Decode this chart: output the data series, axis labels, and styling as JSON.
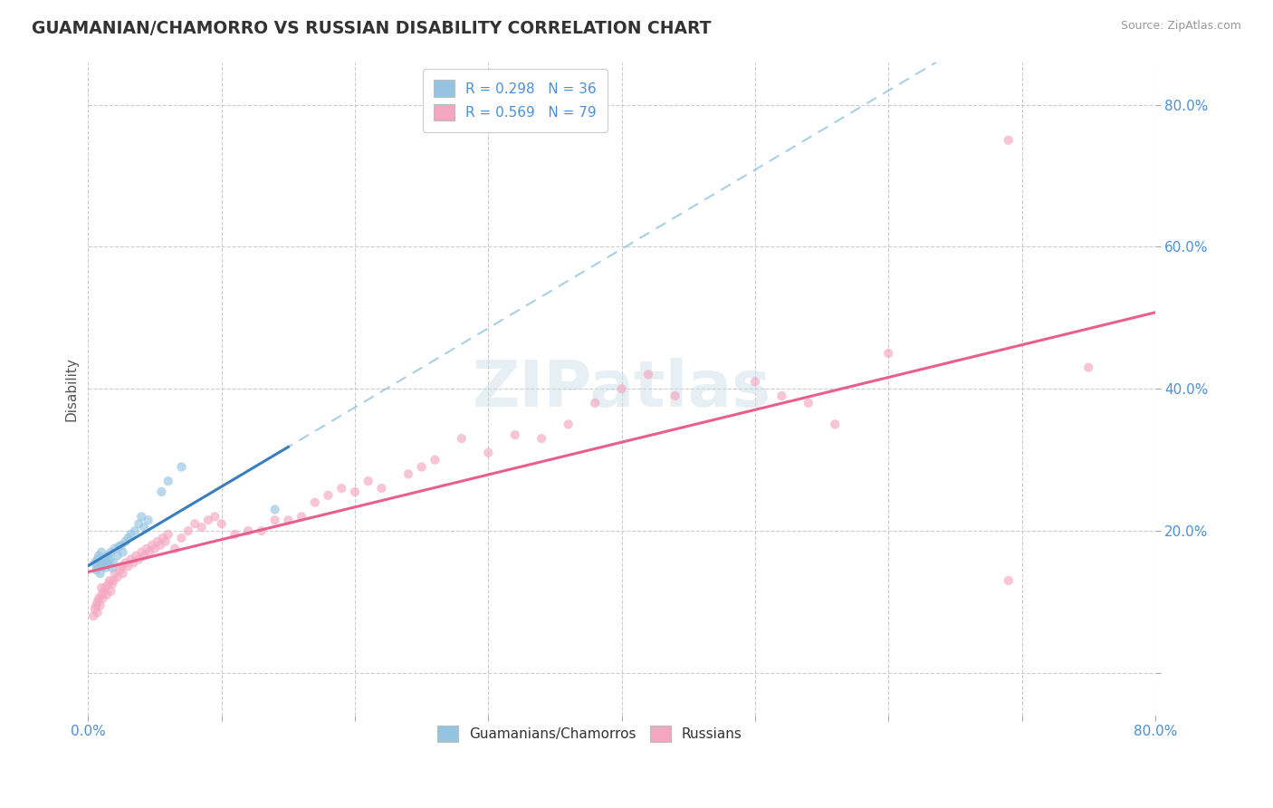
{
  "title": "GUAMANIAN/CHAMORRO VS RUSSIAN DISABILITY CORRELATION CHART",
  "source": "Source: ZipAtlas.com",
  "ylabel": "Disability",
  "xlim": [
    0.0,
    0.8
  ],
  "ylim": [
    -0.06,
    0.86
  ],
  "xticks": [
    0.0,
    0.1,
    0.2,
    0.3,
    0.4,
    0.5,
    0.6,
    0.7,
    0.8
  ],
  "xticklabels": [
    "0.0%",
    "",
    "",
    "",
    "",
    "",
    "",
    "",
    "80.0%"
  ],
  "ytick_positions": [
    0.0,
    0.2,
    0.4,
    0.6,
    0.8
  ],
  "ytick_labels": [
    "",
    "20.0%",
    "40.0%",
    "60.0%",
    "80.0%"
  ],
  "grid_color": "#cccccc",
  "background_color": "#ffffff",
  "watermark": "ZIPatlas",
  "legend1_R": "0.298",
  "legend1_N": "36",
  "legend2_R": "0.569",
  "legend2_N": "79",
  "blue_color": "#94c4e0",
  "pink_color": "#f4a7c0",
  "blue_line_color": "#3a7ec0",
  "pink_line_color": "#e8608a",
  "blue_dash_color": "#94c4e0",
  "scatter_alpha": 0.65,
  "scatter_size": 55,
  "guamanian_x": [
    0.005,
    0.006,
    0.007,
    0.007,
    0.008,
    0.009,
    0.01,
    0.01,
    0.011,
    0.012,
    0.013,
    0.013,
    0.014,
    0.015,
    0.015,
    0.016,
    0.017,
    0.018,
    0.019,
    0.02,
    0.022,
    0.023,
    0.025,
    0.026,
    0.028,
    0.03,
    0.032,
    0.035,
    0.038,
    0.04,
    0.042,
    0.045,
    0.055,
    0.06,
    0.07,
    0.14
  ],
  "guamanian_y": [
    0.155,
    0.145,
    0.16,
    0.15,
    0.165,
    0.14,
    0.155,
    0.17,
    0.15,
    0.158,
    0.162,
    0.148,
    0.155,
    0.165,
    0.152,
    0.16,
    0.17,
    0.148,
    0.155,
    0.175,
    0.165,
    0.178,
    0.18,
    0.17,
    0.185,
    0.19,
    0.195,
    0.2,
    0.21,
    0.22,
    0.205,
    0.215,
    0.255,
    0.27,
    0.29,
    0.23
  ],
  "russian_x": [
    0.004,
    0.005,
    0.006,
    0.007,
    0.007,
    0.008,
    0.009,
    0.01,
    0.01,
    0.011,
    0.012,
    0.013,
    0.014,
    0.015,
    0.016,
    0.017,
    0.018,
    0.019,
    0.02,
    0.022,
    0.024,
    0.025,
    0.026,
    0.028,
    0.03,
    0.032,
    0.034,
    0.036,
    0.038,
    0.04,
    0.042,
    0.044,
    0.046,
    0.048,
    0.05,
    0.052,
    0.054,
    0.056,
    0.058,
    0.06,
    0.065,
    0.07,
    0.075,
    0.08,
    0.085,
    0.09,
    0.095,
    0.1,
    0.11,
    0.12,
    0.13,
    0.14,
    0.15,
    0.16,
    0.17,
    0.18,
    0.19,
    0.2,
    0.21,
    0.22,
    0.24,
    0.25,
    0.26,
    0.28,
    0.3,
    0.32,
    0.34,
    0.36,
    0.38,
    0.4,
    0.42,
    0.44,
    0.5,
    0.52,
    0.54,
    0.56,
    0.6,
    0.69,
    0.75
  ],
  "russian_y": [
    0.08,
    0.09,
    0.095,
    0.085,
    0.1,
    0.105,
    0.095,
    0.11,
    0.12,
    0.105,
    0.115,
    0.12,
    0.11,
    0.125,
    0.13,
    0.115,
    0.125,
    0.13,
    0.14,
    0.135,
    0.145,
    0.15,
    0.14,
    0.155,
    0.15,
    0.16,
    0.155,
    0.165,
    0.16,
    0.17,
    0.165,
    0.175,
    0.17,
    0.18,
    0.175,
    0.185,
    0.18,
    0.19,
    0.185,
    0.195,
    0.175,
    0.19,
    0.2,
    0.21,
    0.205,
    0.215,
    0.22,
    0.21,
    0.195,
    0.2,
    0.2,
    0.215,
    0.215,
    0.22,
    0.24,
    0.25,
    0.26,
    0.255,
    0.27,
    0.26,
    0.28,
    0.29,
    0.3,
    0.33,
    0.31,
    0.335,
    0.33,
    0.35,
    0.38,
    0.4,
    0.42,
    0.39,
    0.41,
    0.39,
    0.38,
    0.35,
    0.45,
    0.13,
    0.43
  ],
  "russian_outlier_x": [
    0.69
  ],
  "russian_outlier_y": [
    0.75
  ]
}
